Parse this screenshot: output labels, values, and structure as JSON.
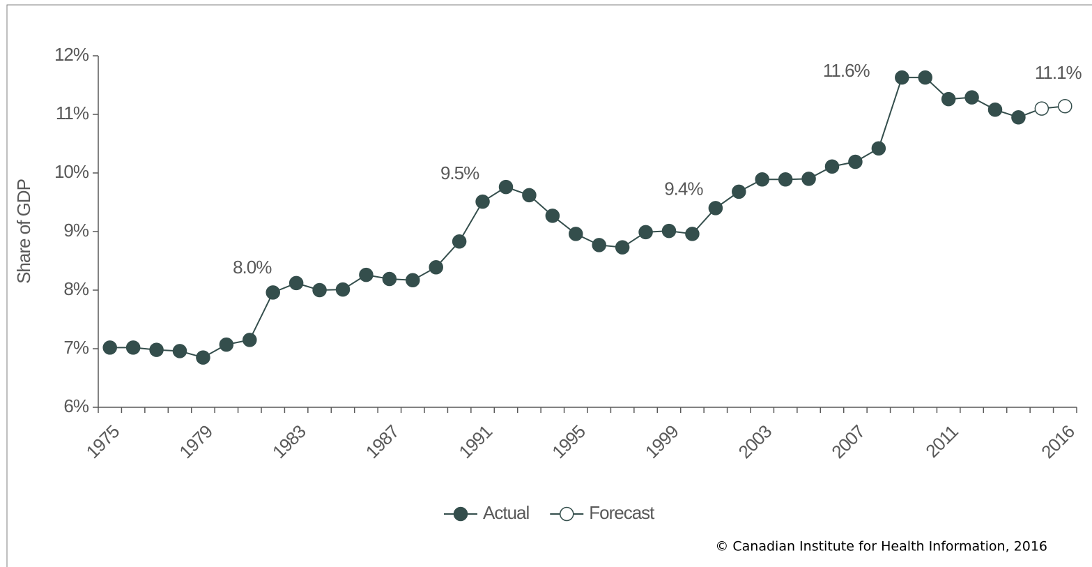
{
  "chart_data": {
    "type": "line",
    "y_label": "Share of GDP",
    "source": "© Canadian Institute for Health Information, 2016",
    "categories": [
      "1975",
      null,
      null,
      null,
      "1979",
      null,
      null,
      null,
      "1983",
      null,
      null,
      null,
      "1987",
      null,
      null,
      null,
      "1991",
      null,
      null,
      null,
      "1995",
      null,
      null,
      null,
      "1999",
      null,
      null,
      null,
      "2003",
      null,
      null,
      null,
      "2007",
      null,
      null,
      null,
      "2011",
      null,
      null,
      null,
      null,
      "2016"
    ],
    "series": [
      {
        "name": "Actual",
        "color": "#344e4c",
        "filled": true,
        "values": [
          7.02,
          7.02,
          6.98,
          6.96,
          6.85,
          7.07,
          7.15,
          7.96,
          8.12,
          8.0,
          8.01,
          8.26,
          8.19,
          8.17,
          8.39,
          8.83,
          9.51,
          9.76,
          9.62,
          9.27,
          8.96,
          8.77,
          8.73,
          8.99,
          9.01,
          8.96,
          9.4,
          9.68,
          9.89,
          9.89,
          9.9,
          10.11,
          10.19,
          10.42,
          11.63,
          11.63,
          11.26,
          11.29,
          11.08,
          10.95,
          null,
          null
        ],
        "value_labels": [
          null,
          null,
          null,
          null,
          null,
          null,
          null,
          "8.0%",
          null,
          null,
          null,
          null,
          null,
          null,
          null,
          null,
          "9.5%",
          null,
          null,
          null,
          null,
          null,
          null,
          null,
          null,
          null,
          "9.4%",
          null,
          null,
          null,
          null,
          null,
          null,
          null,
          "11.6%",
          null,
          null,
          null,
          null,
          null,
          null,
          null
        ]
      },
      {
        "name": "Forecast",
        "color": "#344e4c",
        "filled": false,
        "values": [
          null,
          null,
          null,
          null,
          null,
          null,
          null,
          null,
          null,
          null,
          null,
          null,
          null,
          null,
          null,
          null,
          null,
          null,
          null,
          null,
          null,
          null,
          null,
          null,
          null,
          null,
          null,
          null,
          null,
          null,
          null,
          null,
          null,
          null,
          null,
          null,
          null,
          null,
          null,
          null,
          11.1,
          11.14
        ],
        "value_labels": [
          null,
          null,
          null,
          null,
          null,
          null,
          null,
          null,
          null,
          null,
          null,
          null,
          null,
          null,
          null,
          null,
          null,
          null,
          null,
          null,
          null,
          null,
          null,
          null,
          null,
          null,
          null,
          null,
          null,
          null,
          null,
          null,
          null,
          null,
          null,
          null,
          null,
          null,
          null,
          null,
          null,
          "11.1%"
        ]
      }
    ],
    "ylim": [
      6,
      12
    ],
    "yticks": [
      {
        "value": 6,
        "label": "6%"
      },
      {
        "value": 7,
        "label": "7%"
      },
      {
        "value": 8,
        "label": "8%"
      },
      {
        "value": 9,
        "label": "9%"
      },
      {
        "value": 10,
        "label": "10%"
      },
      {
        "value": 11,
        "label": "11%"
      },
      {
        "value": 12,
        "label": "12%"
      }
    ],
    "grid": false,
    "legend": "bottom"
  }
}
